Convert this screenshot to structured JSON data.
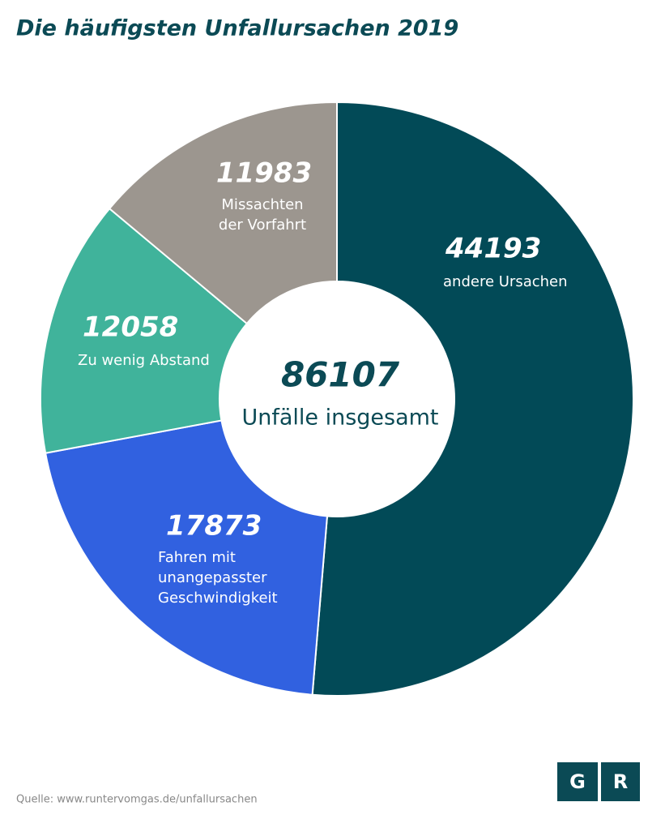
{
  "chart_data": {
    "type": "donut",
    "title": "Die häufigsten Unfallursachen 2019",
    "categories": [
      [
        "andere Ursachen"
      ],
      [
        "Fahren mit",
        "unangepasster",
        "Geschwindigkeit"
      ],
      [
        "Zu wenig Abstand"
      ],
      [
        "Missachten",
        "der Vorfahrt"
      ]
    ],
    "values": [
      44193,
      17873,
      12058,
      11983
    ],
    "colors": [
      "#024a57",
      "#3161e0",
      "#40b39b",
      "#9c968f"
    ],
    "total": 86107,
    "total_label": "Unfälle insgesamt"
  },
  "footer": {
    "source": "Quelle: www.runtervomgas.de/unfallursachen",
    "logo": [
      "G",
      "R"
    ]
  }
}
